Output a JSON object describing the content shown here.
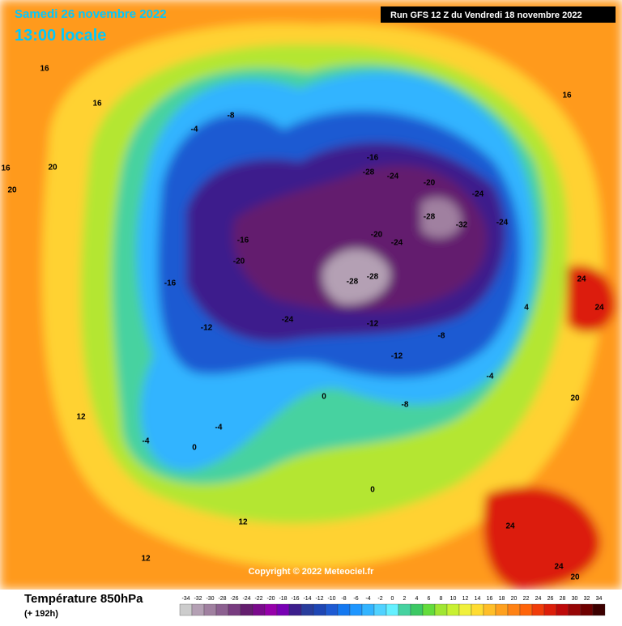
{
  "header": {
    "date": "Samedi 26 novembre 2022",
    "time": "13:00 locale",
    "run": "Run GFS 12 Z du Vendredi 18 novembre 2022"
  },
  "copyright": "Copyright © 2022 Meteociel.fr",
  "legend": {
    "title": "Température 850hPa",
    "subtitle": "(+ 192h)",
    "ticks": [
      -34,
      -32,
      -30,
      -28,
      -26,
      -24,
      -22,
      -20,
      -18,
      -16,
      -14,
      -12,
      -10,
      -8,
      -6,
      -4,
      -2,
      0,
      2,
      4,
      6,
      8,
      10,
      12,
      14,
      16,
      18,
      20,
      22,
      24,
      26,
      28,
      30,
      32,
      34
    ],
    "colors": [
      "#cccccc",
      "#b4a0b4",
      "#a080a0",
      "#8c6090",
      "#783c80",
      "#641e6e",
      "#7a0a8c",
      "#9600aa",
      "#7800b4",
      "#3c1e8c",
      "#283c9c",
      "#1e46b4",
      "#1e5ad2",
      "#1478f0",
      "#1e96ff",
      "#32b4ff",
      "#50d2ff",
      "#64f0ff",
      "#46d2a0",
      "#3cc864",
      "#64dc3c",
      "#a0e632",
      "#c8f032",
      "#f0f03c",
      "#ffdc32",
      "#ffbe28",
      "#ffa01e",
      "#ff8214",
      "#ff640a",
      "#f03c0a",
      "#dc1e0a",
      "#be0a0a",
      "#960505",
      "#6e0000",
      "#3c0000"
    ]
  },
  "map_labels": [
    16,
    16,
    16,
    20,
    20,
    -8,
    -4,
    -16,
    -28,
    -24,
    -20,
    -24,
    -28,
    -32,
    -24,
    -20,
    -24,
    -28,
    -28,
    -16,
    -20,
    -16,
    -12,
    -24,
    -12,
    -12,
    -8,
    -4,
    0,
    -4,
    -4,
    12,
    12,
    12,
    16,
    20,
    24,
    24,
    20,
    24,
    24,
    4,
    -8,
    0,
    0
  ]
}
